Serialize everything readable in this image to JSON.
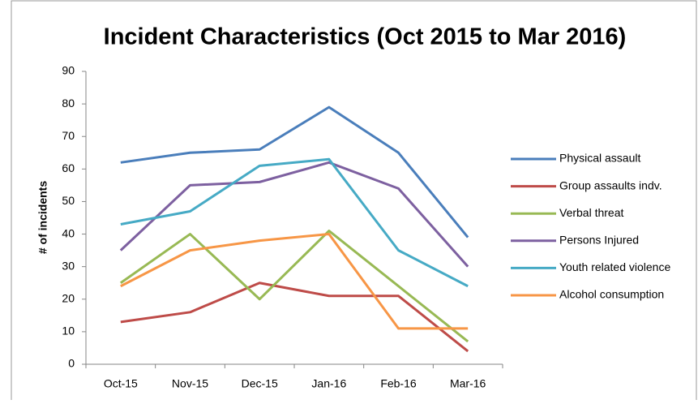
{
  "chart_data": {
    "type": "line",
    "title": "Incident Characteristics (Oct 2015 to Mar 2016)",
    "y_label": "# of incidents",
    "categories": [
      "Oct-15",
      "Nov-15",
      "Dec-15",
      "Jan-16",
      "Feb-16",
      "Mar-16"
    ],
    "series": [
      {
        "name": "Physical assault",
        "color": "#4a7ebb",
        "values": [
          62,
          65,
          66,
          79,
          65,
          39
        ]
      },
      {
        "name": "Group assaults indv.",
        "color": "#be4b48",
        "values": [
          13,
          16,
          25,
          21,
          21,
          4
        ]
      },
      {
        "name": "Verbal threat",
        "color": "#98b954",
        "values": [
          25,
          40,
          20,
          41,
          24,
          7
        ]
      },
      {
        "name": "Persons Injured",
        "color": "#7d60a0",
        "values": [
          35,
          55,
          56,
          62,
          54,
          30
        ]
      },
      {
        "name": "Youth related violence",
        "color": "#46aac5",
        "values": [
          43,
          47,
          61,
          63,
          35,
          24
        ]
      },
      {
        "name": "Alcohol consumption",
        "color": "#f79646",
        "values": [
          24,
          35,
          38,
          40,
          11,
          11
        ]
      }
    ],
    "ylim": [
      0,
      90
    ],
    "yticks": [
      0,
      10,
      20,
      30,
      40,
      50,
      60,
      70,
      80,
      90
    ],
    "grid": false,
    "legend": "right"
  }
}
